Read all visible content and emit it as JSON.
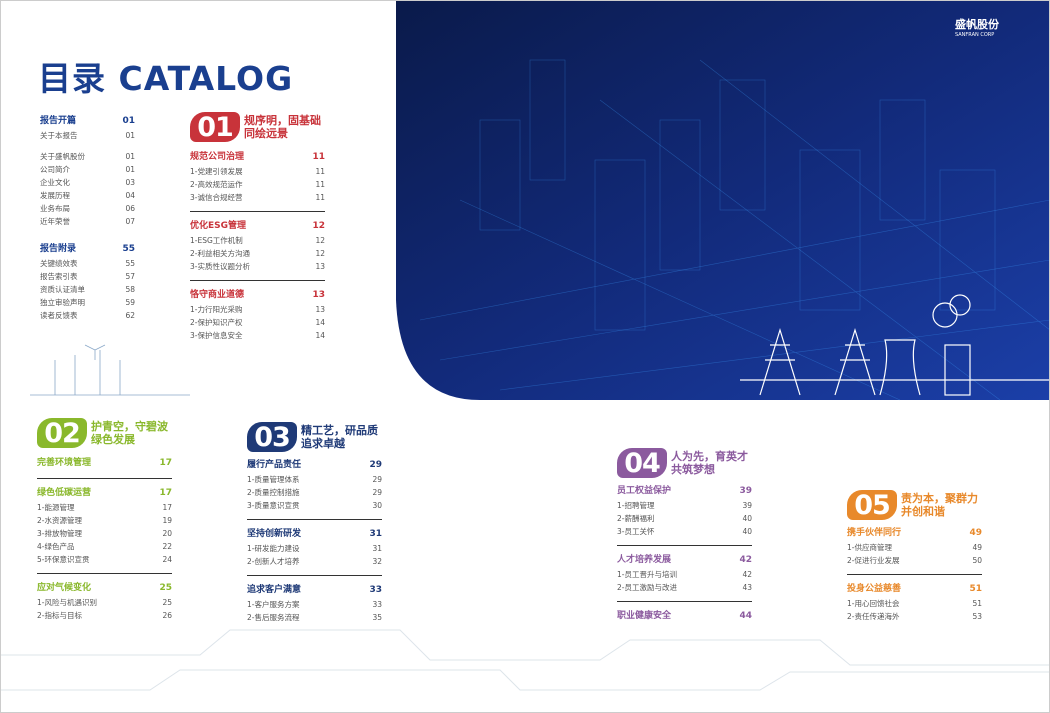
{
  "header": {
    "title": "目录 CATALOG",
    "logo": "盛帆股份",
    "logo_sub": "SANFRAN CORP"
  },
  "front_matter": [
    {
      "title": "报告开篇",
      "page": "01",
      "items": [
        [
          "关于本报告",
          "01"
        ],
        [
          "关于盛帆股份",
          "01"
        ],
        [
          "公司简介",
          "01"
        ],
        [
          "企业文化",
          "03"
        ],
        [
          "发展历程",
          "04"
        ],
        [
          "业务布局",
          "06"
        ],
        [
          "近年荣誉",
          "07"
        ]
      ]
    },
    {
      "title": "报告附录",
      "page": "55",
      "items": [
        [
          "关键绩效表",
          "55"
        ],
        [
          "报告索引表",
          "57"
        ],
        [
          "资质认证清单",
          "58"
        ],
        [
          "独立审验声明",
          "59"
        ],
        [
          "读者反馈表",
          "62"
        ]
      ]
    }
  ],
  "chapters": [
    {
      "number": "01",
      "color": "#c8333a",
      "title": [
        "规序明，固基础",
        "同绘远景"
      ],
      "sections": [
        {
          "title": "规范公司治理",
          "page": "11",
          "items": [
            [
              "1-党建引领发展",
              "11"
            ],
            [
              "2-高效规范运作",
              "11"
            ],
            [
              "3-诚信合规经营",
              "11"
            ]
          ]
        },
        {
          "title": "优化ESG管理",
          "page": "12",
          "items": [
            [
              "1-ESG工作机制",
              "12"
            ],
            [
              "2-利益相关方沟通",
              "12"
            ],
            [
              "3-实质性议题分析",
              "13"
            ]
          ]
        },
        {
          "title": "恪守商业道德",
          "page": "13",
          "items": [
            [
              "1-力行阳光采购",
              "13"
            ],
            [
              "2-保护知识产权",
              "14"
            ],
            [
              "3-保护信息安全",
              "14"
            ]
          ]
        }
      ]
    },
    {
      "number": "02",
      "color": "#8ab82c",
      "title": [
        "护青空，守碧波",
        "绿色发展"
      ],
      "sections": [
        {
          "title": "完善环境管理",
          "page": "17",
          "items": []
        },
        {
          "title": "绿色低碳运营",
          "page": "17",
          "items": [
            [
              "1-能源管理",
              "17"
            ],
            [
              "2-水资源管理",
              "19"
            ],
            [
              "3-排放物管理",
              "20"
            ],
            [
              "4-绿色产品",
              "22"
            ],
            [
              "5-环保意识宣贯",
              "24"
            ]
          ]
        },
        {
          "title": "应对气候变化",
          "page": "25",
          "items": [
            [
              "1-风险与机遇识别",
              "25"
            ],
            [
              "2-指标与目标",
              "26"
            ]
          ]
        }
      ]
    },
    {
      "number": "03",
      "color": "#1f3a77",
      "title": [
        "精工艺，研品质",
        "追求卓越"
      ],
      "sections": [
        {
          "title": "履行产品责任",
          "page": "29",
          "items": [
            [
              "1-质量管理体系",
              "29"
            ],
            [
              "2-质量控制措施",
              "29"
            ],
            [
              "3-质量意识宣贯",
              "30"
            ]
          ]
        },
        {
          "title": "坚持创新研发",
          "page": "31",
          "items": [
            [
              "1-研发能力建设",
              "31"
            ],
            [
              "2-创新人才培养",
              "32"
            ]
          ]
        },
        {
          "title": "追求客户满意",
          "page": "33",
          "items": [
            [
              "1-客户服务方案",
              "33"
            ],
            [
              "2-售后服务流程",
              "35"
            ]
          ]
        }
      ]
    },
    {
      "number": "04",
      "color": "#8b5a9e",
      "title": [
        "人为先，育英才",
        "共筑梦想"
      ],
      "sections": [
        {
          "title": "员工权益保护",
          "page": "39",
          "items": [
            [
              "1-招聘管理",
              "39"
            ],
            [
              "2-薪酬福利",
              "40"
            ],
            [
              "3-员工关怀",
              "40"
            ]
          ]
        },
        {
          "title": "人才培养发展",
          "page": "42",
          "items": [
            [
              "1-员工晋升与培训",
              "42"
            ],
            [
              "2-员工激励与改进",
              "43"
            ]
          ]
        },
        {
          "title": "职业健康安全",
          "page": "44",
          "items": []
        }
      ]
    },
    {
      "number": "05",
      "color": "#e8892b",
      "title": [
        "责为本，聚群力",
        "并创和谐"
      ],
      "sections": [
        {
          "title": "携手伙伴同行",
          "page": "49",
          "items": [
            [
              "1-供应商管理",
              "49"
            ],
            [
              "2-促进行业发展",
              "50"
            ]
          ]
        },
        {
          "title": "投身公益慈善",
          "page": "51",
          "items": [
            [
              "1-用心回馈社会",
              "51"
            ],
            [
              "2-责任传递海外",
              "53"
            ]
          ]
        }
      ]
    }
  ]
}
